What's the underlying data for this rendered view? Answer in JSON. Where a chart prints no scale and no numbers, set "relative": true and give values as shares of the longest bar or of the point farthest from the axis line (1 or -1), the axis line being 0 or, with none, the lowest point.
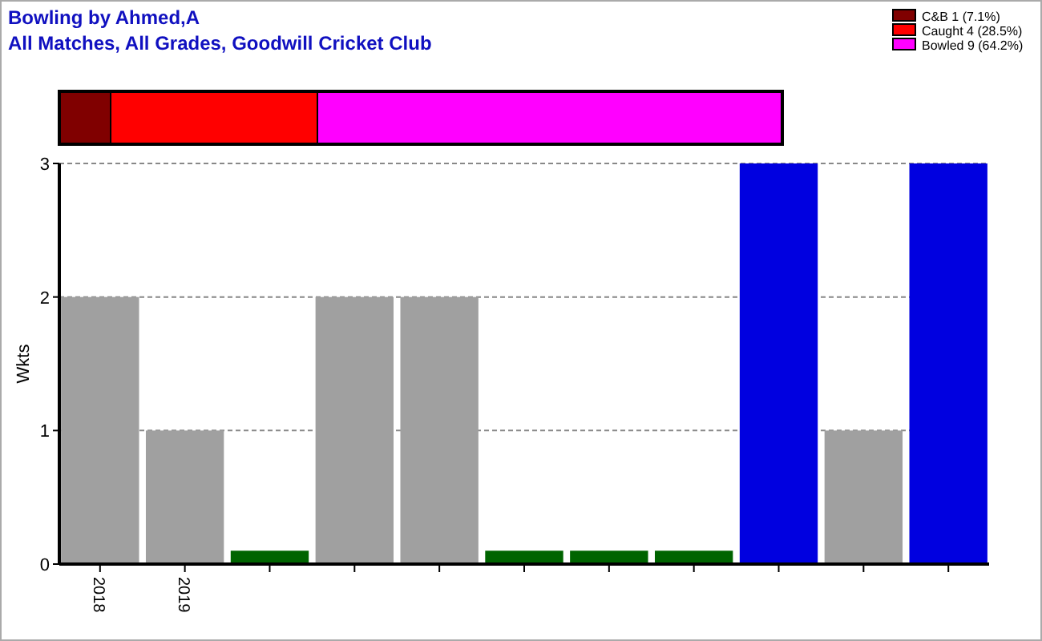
{
  "chart_data": [
    {
      "type": "bar",
      "orientation": "horizontal",
      "stacked": true,
      "title": "Bowling by Ahmed,A",
      "subtitle": "All Matches, All Grades, Goodwill Cricket Club",
      "categories": [
        null
      ],
      "relative": true,
      "legend": "top right",
      "series": [
        {
          "name": "C&B 1 (7.1%)",
          "color": "#800000",
          "values": [
            0.071
          ]
        },
        {
          "name": "Caught 4 (28.5%)",
          "color": "#ff0000",
          "values": [
            0.286
          ]
        },
        {
          "name": "Bowled 9 (64.2%)",
          "color": "#ff00ff",
          "values": [
            0.643
          ]
        }
      ]
    },
    {
      "type": "bar",
      "ylabel": "Wkts",
      "categories": [
        "2018",
        "2019",
        null,
        null,
        null,
        null,
        null,
        null,
        null,
        null,
        null
      ],
      "values": [
        2,
        1,
        0.1,
        2,
        2,
        0.1,
        0.1,
        0.1,
        3,
        1,
        3
      ],
      "colors": [
        "#a0a0a0",
        "#a0a0a0",
        "#006400",
        "#a0a0a0",
        "#a0a0a0",
        "#006400",
        "#006400",
        "#006400",
        "#0000e0",
        "#a0a0a0",
        "#0000e0"
      ],
      "ylim": [
        0,
        3
      ],
      "yticks": [
        0,
        1,
        2,
        3
      ],
      "grid": "y"
    }
  ]
}
